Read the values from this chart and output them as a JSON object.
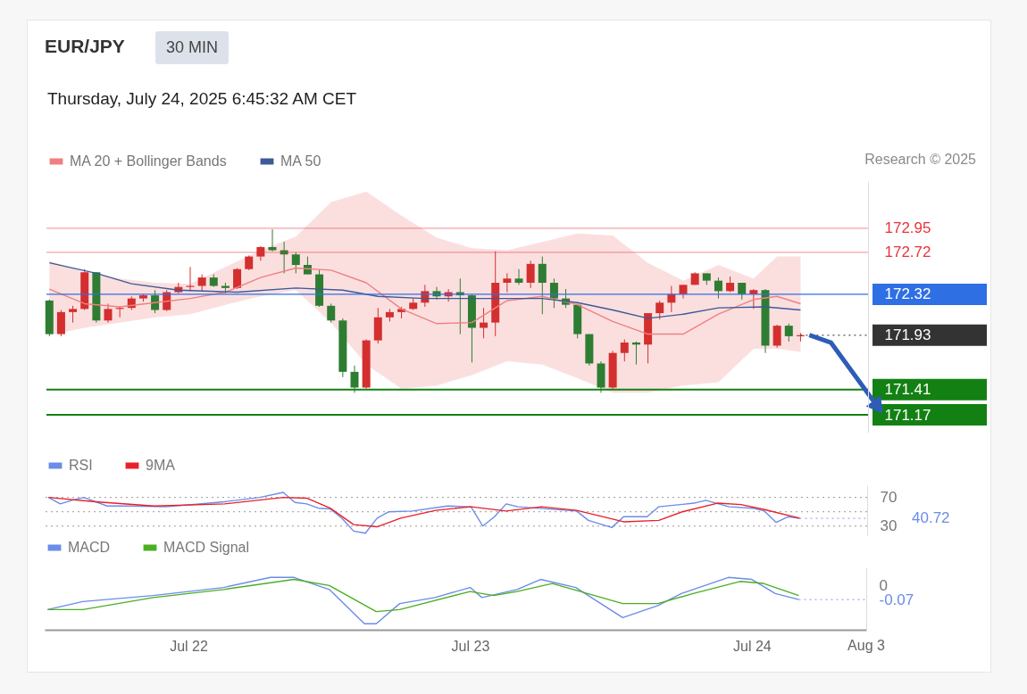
{
  "chart_data": [
    {
      "type": "candlestick",
      "title": "EUR/JPY",
      "subtitle": "Thursday, July 24, 2025 6:45:32 AM CET",
      "annotations": [
        "30 MIN",
        "Research © 2025"
      ],
      "x": [
        "2025-07-21T12:00",
        "2025-07-21T13:00",
        "2025-07-21T14:00",
        "2025-07-21T15:00",
        "2025-07-21T16:00",
        "2025-07-21T17:00",
        "2025-07-21T18:00",
        "2025-07-21T19:00",
        "2025-07-21T20:00",
        "2025-07-21T21:00",
        "2025-07-21T22:00",
        "2025-07-21T23:00",
        "2025-07-22T00:00",
        "2025-07-22T01:00",
        "2025-07-22T02:00",
        "2025-07-22T03:00",
        "2025-07-22T04:00",
        "2025-07-22T05:00",
        "2025-07-22T06:00",
        "2025-07-22T07:00",
        "2025-07-22T08:00",
        "2025-07-22T09:00",
        "2025-07-22T10:00",
        "2025-07-22T11:00",
        "2025-07-22T12:00",
        "2025-07-22T13:00",
        "2025-07-22T14:00",
        "2025-07-22T15:00",
        "2025-07-22T16:00",
        "2025-07-22T17:00",
        "2025-07-22T18:00",
        "2025-07-22T19:00",
        "2025-07-22T20:00",
        "2025-07-22T21:00",
        "2025-07-22T22:00",
        "2025-07-22T23:00",
        "2025-07-23T00:00",
        "2025-07-23T01:00",
        "2025-07-23T02:00",
        "2025-07-23T03:00",
        "2025-07-23T04:00",
        "2025-07-23T05:00",
        "2025-07-23T06:00",
        "2025-07-23T07:00",
        "2025-07-23T08:00",
        "2025-07-23T09:00",
        "2025-07-23T10:00",
        "2025-07-23T11:00",
        "2025-07-23T12:00",
        "2025-07-23T13:00",
        "2025-07-23T14:00",
        "2025-07-23T15:00",
        "2025-07-23T16:00",
        "2025-07-23T17:00",
        "2025-07-23T18:00",
        "2025-07-23T19:00",
        "2025-07-23T20:00",
        "2025-07-23T21:00",
        "2025-07-23T22:00",
        "2025-07-23T23:00",
        "2025-07-24T00:00",
        "2025-07-24T01:00",
        "2025-07-24T02:00",
        "2025-07-24T03:00",
        "2025-07-24T04:00"
      ],
      "ohlc": [
        [
          172.26,
          172.27,
          171.92,
          171.94
        ],
        [
          171.94,
          172.17,
          171.92,
          172.15
        ],
        [
          172.15,
          172.21,
          172.05,
          172.18
        ],
        [
          172.18,
          172.56,
          172.17,
          172.53
        ],
        [
          172.53,
          172.53,
          172.05,
          172.07
        ],
        [
          172.07,
          172.23,
          172.05,
          172.18
        ],
        [
          172.18,
          172.2,
          172.1,
          172.19
        ],
        [
          172.19,
          172.3,
          172.17,
          172.28
        ],
        [
          172.28,
          172.32,
          172.25,
          172.31
        ],
        [
          172.31,
          172.36,
          172.14,
          172.17
        ],
        [
          172.17,
          172.36,
          172.16,
          172.34
        ],
        [
          172.34,
          172.43,
          172.33,
          172.39
        ],
        [
          172.39,
          172.58,
          172.35,
          172.4
        ],
        [
          172.4,
          172.51,
          172.35,
          172.48
        ],
        [
          172.48,
          172.51,
          172.39,
          172.4
        ],
        [
          172.4,
          172.43,
          172.33,
          172.38
        ],
        [
          172.38,
          172.57,
          172.37,
          172.56
        ],
        [
          172.56,
          172.69,
          172.55,
          172.68
        ],
        [
          172.68,
          172.78,
          172.64,
          172.77
        ],
        [
          172.77,
          172.94,
          172.73,
          172.74
        ],
        [
          172.74,
          172.82,
          172.52,
          172.7
        ],
        [
          172.7,
          172.72,
          172.52,
          172.6
        ],
        [
          172.6,
          172.68,
          172.51,
          172.51
        ],
        [
          172.51,
          172.55,
          172.2,
          172.21
        ],
        [
          172.21,
          172.23,
          172.05,
          172.07
        ],
        [
          172.07,
          172.09,
          171.53,
          171.58
        ],
        [
          171.58,
          171.64,
          171.38,
          171.43
        ],
        [
          171.43,
          171.89,
          171.42,
          171.88
        ],
        [
          171.88,
          172.19,
          171.85,
          172.1
        ],
        [
          172.1,
          172.18,
          172.06,
          172.15
        ],
        [
          172.15,
          172.2,
          172.09,
          172.18
        ],
        [
          172.18,
          172.28,
          172.17,
          172.24
        ],
        [
          172.24,
          172.41,
          172.2,
          172.35
        ],
        [
          172.35,
          172.39,
          172.27,
          172.3
        ],
        [
          172.3,
          172.37,
          172.25,
          172.34
        ],
        [
          172.34,
          172.47,
          171.94,
          172.31
        ],
        [
          172.31,
          172.32,
          171.67,
          172.0
        ],
        [
          172.0,
          172.19,
          171.9,
          172.05
        ],
        [
          172.05,
          172.73,
          171.92,
          172.43
        ],
        [
          172.43,
          172.52,
          172.34,
          172.47
        ],
        [
          172.47,
          172.56,
          172.41,
          172.43
        ],
        [
          172.43,
          172.64,
          172.38,
          172.61
        ],
        [
          172.61,
          172.68,
          172.13,
          172.43
        ],
        [
          172.43,
          172.47,
          172.19,
          172.28
        ],
        [
          172.28,
          172.37,
          172.19,
          172.22
        ],
        [
          172.22,
          172.23,
          171.9,
          171.94
        ],
        [
          171.94,
          171.94,
          171.64,
          171.66
        ],
        [
          171.66,
          171.68,
          171.38,
          171.43
        ],
        [
          171.43,
          171.78,
          171.41,
          171.76
        ],
        [
          171.76,
          171.89,
          171.68,
          171.86
        ],
        [
          171.86,
          171.87,
          171.65,
          171.84
        ],
        [
          171.84,
          172.14,
          171.66,
          172.14
        ],
        [
          172.14,
          172.26,
          172.08,
          172.24
        ],
        [
          172.24,
          172.4,
          172.15,
          172.32
        ],
        [
          172.32,
          172.41,
          172.28,
          172.41
        ],
        [
          172.41,
          172.53,
          172.41,
          172.52
        ],
        [
          172.52,
          172.52,
          172.41,
          172.45
        ],
        [
          172.45,
          172.48,
          172.28,
          172.35
        ],
        [
          172.35,
          172.49,
          172.34,
          172.43
        ],
        [
          172.43,
          172.43,
          172.27,
          172.32
        ],
        [
          172.32,
          172.37,
          172.18,
          172.36
        ],
        [
          172.36,
          172.37,
          171.76,
          171.83
        ],
        [
          171.83,
          172.03,
          171.81,
          172.02
        ],
        [
          172.02,
          172.04,
          171.87,
          171.92
        ],
        [
          171.92,
          171.95,
          171.87,
          171.93
        ]
      ],
      "series": [
        {
          "name": "MA 20 + Bollinger Bands",
          "type": "line",
          "color": "#f08080",
          "x": [
            "2025-07-21T12:00",
            "2025-07-21T15:00",
            "2025-07-21T18:00",
            "2025-07-21T21:00",
            "2025-07-22T00:00",
            "2025-07-22T03:00",
            "2025-07-22T06:00",
            "2025-07-22T09:00",
            "2025-07-22T12:00",
            "2025-07-22T15:00",
            "2025-07-22T18:00",
            "2025-07-22T21:00",
            "2025-07-23T00:00",
            "2025-07-23T03:00",
            "2025-07-23T06:00",
            "2025-07-23T09:00",
            "2025-07-23T12:00",
            "2025-07-23T15:00",
            "2025-07-23T18:00",
            "2025-07-23T21:00",
            "2025-07-24T00:00",
            "2025-07-24T02:00",
            "2025-07-24T04:00"
          ],
          "values": [
            172.37,
            172.23,
            172.2,
            172.24,
            172.28,
            172.34,
            172.48,
            172.57,
            172.55,
            172.43,
            172.18,
            172.04,
            172.05,
            172.26,
            172.3,
            172.22,
            172.06,
            171.94,
            171.94,
            172.13,
            172.27,
            172.3,
            172.23
          ],
          "lower": [
            171.93,
            172.0,
            172.05,
            172.1,
            172.13,
            172.22,
            172.3,
            172.36,
            172.05,
            171.65,
            171.42,
            171.45,
            171.55,
            171.68,
            171.65,
            171.52,
            171.38,
            171.38,
            171.45,
            171.48,
            171.8,
            171.8,
            171.77
          ],
          "upper": [
            172.64,
            172.53,
            172.47,
            172.43,
            172.42,
            172.58,
            172.74,
            172.87,
            173.2,
            173.3,
            173.07,
            172.86,
            172.76,
            172.74,
            172.82,
            172.9,
            172.88,
            172.62,
            172.45,
            172.6,
            172.47,
            172.68,
            172.68
          ]
        },
        {
          "name": "MA 50",
          "type": "line",
          "color": "#3d5a99",
          "x": [
            "2025-07-21T12:00",
            "2025-07-21T16:00",
            "2025-07-21T19:00",
            "2025-07-21T23:00",
            "2025-07-22T04:00",
            "2025-07-22T09:00",
            "2025-07-22T13:00",
            "2025-07-22T16:00",
            "2025-07-22T20:00",
            "2025-07-23T00:00",
            "2025-07-23T06:00",
            "2025-07-23T09:00",
            "2025-07-23T12:00",
            "2025-07-23T15:00",
            "2025-07-23T18:00",
            "2025-07-23T21:00",
            "2025-07-24T01:00",
            "2025-07-24T04:00"
          ],
          "values": [
            172.62,
            172.52,
            172.42,
            172.36,
            172.34,
            172.38,
            172.36,
            172.3,
            172.28,
            172.28,
            172.28,
            172.24,
            172.17,
            172.09,
            172.13,
            172.19,
            172.2,
            172.17
          ]
        }
      ],
      "xlim": [
        "2025-07-21T11:45",
        "2025-07-24T09:45"
      ],
      "ylim": [
        171.0,
        173.4
      ],
      "yticks": [
        172.95,
        172.72,
        172.32,
        171.93,
        171.41,
        171.17
      ],
      "tick_labels": "y",
      "legend": "top left",
      "ref_lines": [
        {
          "axis": "y",
          "value": 172.95,
          "color": "#e8333b"
        },
        {
          "axis": "y",
          "value": 172.72,
          "color": "#e8333b"
        },
        {
          "axis": "y",
          "value": 172.32,
          "color": "#2f6fe4"
        },
        {
          "axis": "y",
          "value": 171.93,
          "color": "#333333",
          "line_style": "dotted"
        },
        {
          "axis": "y",
          "value": 171.41,
          "color": "#138013"
        },
        {
          "axis": "y",
          "value": 171.17,
          "color": "#138013"
        }
      ]
    },
    {
      "type": "line",
      "series": [
        {
          "name": "RSI",
          "color": "#6b8ce8",
          "x": [
            "2025-07-21T12:00",
            "2025-07-21T13:00",
            "2025-07-21T14:00",
            "2025-07-21T15:00",
            "2025-07-21T17:00",
            "2025-07-21T19:00",
            "2025-07-21T22:00",
            "2025-07-22T03:00",
            "2025-07-22T06:00",
            "2025-07-22T08:00",
            "2025-07-22T09:00",
            "2025-07-22T10:00",
            "2025-07-22T11:00",
            "2025-07-22T12:00",
            "2025-07-22T13:00",
            "2025-07-22T14:00",
            "2025-07-22T15:00",
            "2025-07-22T16:00",
            "2025-07-22T17:00",
            "2025-07-22T19:00",
            "2025-07-22T22:00",
            "2025-07-23T00:00",
            "2025-07-23T01:00",
            "2025-07-23T02:00",
            "2025-07-23T03:00",
            "2025-07-23T04:00",
            "2025-07-23T09:00",
            "2025-07-23T10:00",
            "2025-07-23T12:00",
            "2025-07-23T13:00",
            "2025-07-23T15:00",
            "2025-07-23T16:00",
            "2025-07-23T19:00",
            "2025-07-23T20:00",
            "2025-07-23T22:00",
            "2025-07-24T00:00",
            "2025-07-24T01:00",
            "2025-07-24T02:00",
            "2025-07-24T03:00",
            "2025-07-24T04:00"
          ],
          "values": [
            70,
            61,
            66,
            70,
            58,
            58,
            57,
            64,
            70,
            77,
            63,
            61,
            55,
            54,
            41,
            23,
            20,
            41,
            50,
            51,
            58,
            57,
            30,
            43,
            61,
            57,
            51,
            38,
            28,
            43,
            43,
            57,
            62,
            66,
            57,
            55,
            51,
            35,
            43,
            40.72
          ]
        },
        {
          "name": "9MA",
          "color": "#e8202a",
          "x": [
            "2025-07-21T12:00",
            "2025-07-21T16:00",
            "2025-07-21T21:00",
            "2025-07-22T03:00",
            "2025-07-22T08:00",
            "2025-07-22T10:00",
            "2025-07-22T12:00",
            "2025-07-22T14:00",
            "2025-07-22T16:00",
            "2025-07-22T18:00",
            "2025-07-22T21:00",
            "2025-07-23T00:00",
            "2025-07-23T03:00",
            "2025-07-23T06:00",
            "2025-07-23T09:00",
            "2025-07-23T13:00",
            "2025-07-23T16:00",
            "2025-07-23T18:00",
            "2025-07-23T21:00",
            "2025-07-23T23:00",
            "2025-07-24T01:00",
            "2025-07-24T04:00"
          ],
          "values": [
            70,
            64,
            58,
            61,
            70,
            69,
            55,
            32,
            29,
            41,
            52,
            57,
            51,
            57,
            52,
            36,
            38,
            50,
            62,
            60,
            53,
            41
          ]
        }
      ],
      "xlim": [
        "2025-07-21T11:45",
        "2025-07-24T09:45"
      ],
      "ylim": [
        16,
        87
      ],
      "yticks": [
        70,
        {
          "value": 50,
          "label": null
        },
        30
      ],
      "grid": "y",
      "tick_labels": "y",
      "legend": "top left",
      "ref_lines": [
        {
          "axis": "y",
          "value": 40.72,
          "label": "40.72",
          "color": "#6b8ce8",
          "line_style": "dotted"
        }
      ]
    },
    {
      "type": "line",
      "series": [
        {
          "name": "MACD",
          "color": "#6b8ce8",
          "x": [
            "2025-07-21T12:00",
            "2025-07-21T15:00",
            "2025-07-21T21:00",
            "2025-07-22T03:00",
            "2025-07-22T07:00",
            "2025-07-22T09:00",
            "2025-07-22T12:00",
            "2025-07-22T15:00",
            "2025-07-22T16:00",
            "2025-07-22T18:00",
            "2025-07-22T21:00",
            "2025-07-23T00:00",
            "2025-07-23T01:00",
            "2025-07-23T04:00",
            "2025-07-23T06:00",
            "2025-07-23T09:00",
            "2025-07-23T13:00",
            "2025-07-23T16:00",
            "2025-07-23T18:00",
            "2025-07-23T22:00",
            "2025-07-24T00:00",
            "2025-07-24T02:00",
            "2025-07-24T04:00"
          ],
          "values": [
            -0.12,
            -0.08,
            -0.05,
            -0.01,
            0.04,
            0.04,
            -0.02,
            -0.19,
            -0.19,
            -0.09,
            -0.06,
            -0.01,
            -0.06,
            -0.02,
            0.03,
            -0.01,
            -0.16,
            -0.1,
            -0.04,
            0.04,
            0.03,
            -0.04,
            -0.07
          ]
        },
        {
          "name": "MACD Signal",
          "color": "#4caf22",
          "x": [
            "2025-07-21T12:00",
            "2025-07-21T15:00",
            "2025-07-21T21:00",
            "2025-07-22T03:00",
            "2025-07-22T09:00",
            "2025-07-22T12:00",
            "2025-07-22T16:00",
            "2025-07-22T18:00",
            "2025-07-23T00:00",
            "2025-07-23T02:00",
            "2025-07-23T04:00",
            "2025-07-23T07:00",
            "2025-07-23T10:00",
            "2025-07-23T13:00",
            "2025-07-23T16:00",
            "2025-07-23T19:00",
            "2025-07-23T23:00",
            "2025-07-24T01:00",
            "2025-07-24T04:00"
          ],
          "values": [
            -0.12,
            -0.12,
            -0.06,
            -0.02,
            0.03,
            0,
            -0.13,
            -0.12,
            -0.03,
            -0.05,
            -0.03,
            0.01,
            -0.04,
            -0.09,
            -0.09,
            -0.04,
            0.02,
            0.01,
            -0.05
          ]
        }
      ],
      "xlim": [
        "2025-07-21T11:45",
        "2025-07-24T09:45"
      ],
      "ylim": [
        -0.22,
        0.09
      ],
      "yticks": [
        0,
        -0.07
      ],
      "legend": "top left",
      "annotations": [
        "Aug 3"
      ],
      "xticks": [
        {
          "value": "2025-07-22",
          "label": "Jul 22"
        },
        {
          "value": "2025-07-23",
          "label": "Jul 23"
        },
        {
          "value": "2025-07-24",
          "label": "Jul 24"
        }
      ],
      "ref_lines": [
        {
          "axis": "y",
          "value": -0.07,
          "color": "#6b8ce8",
          "line_style": "dotted"
        }
      ]
    }
  ]
}
